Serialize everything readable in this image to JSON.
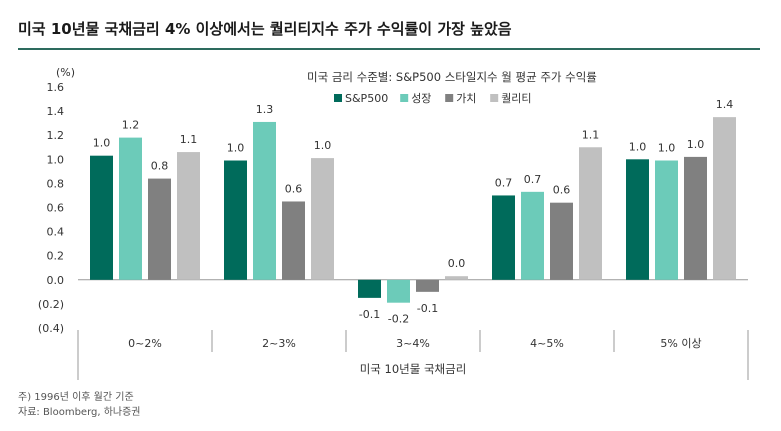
{
  "title": "미국 10년물 국채금리 4% 이상에서는 퀄리티지수 주가 수익률이 가장 높았음",
  "notes": {
    "note": "주) 1996년 이후 월간 기준",
    "source": "자료: Bloomberg, 하나증권"
  },
  "colors": {
    "S&P500": "#006b5b",
    "성장": "#6ccbb9",
    "가치": "#808080",
    "퀄리티": "#c0c0c0"
  },
  "chart_data": {
    "type": "bar",
    "title": "미국 금리 수준별: S&P500 스타일지수 월 평균 주가 수익률",
    "ylabel": "(%)",
    "xlabel": "미국 10년물 국채금리",
    "ylim": [
      -0.4,
      1.6
    ],
    "yticks": [
      "1.6",
      "1.4",
      "1.2",
      "1.0",
      "0.8",
      "0.6",
      "0.4",
      "0.2",
      "0.0",
      "(0.2)",
      "(0.4)"
    ],
    "legend_position": "top",
    "categories": [
      "0~2%",
      "2~3%",
      "3~4%",
      "4~5%",
      "5% 이상"
    ],
    "series": [
      {
        "name": "S&P500",
        "values": [
          1.03,
          0.99,
          -0.15,
          0.7,
          1.0
        ],
        "labels": [
          "1.0",
          "1.0",
          "-0.1",
          "0.7",
          "1.0"
        ]
      },
      {
        "name": "성장",
        "values": [
          1.18,
          1.31,
          -0.19,
          0.73,
          0.99
        ],
        "labels": [
          "1.2",
          "1.3",
          "-0.2",
          "0.7",
          "1.0"
        ]
      },
      {
        "name": "가치",
        "values": [
          0.84,
          0.65,
          -0.1,
          0.64,
          1.02
        ],
        "labels": [
          "0.8",
          "0.6",
          "-0.1",
          "0.6",
          "1.0"
        ]
      },
      {
        "name": "퀄리티",
        "values": [
          1.06,
          1.01,
          0.03,
          1.1,
          1.35
        ],
        "labels": [
          "1.1",
          "1.0",
          "0.0",
          "1.1",
          "1.4"
        ]
      }
    ]
  }
}
